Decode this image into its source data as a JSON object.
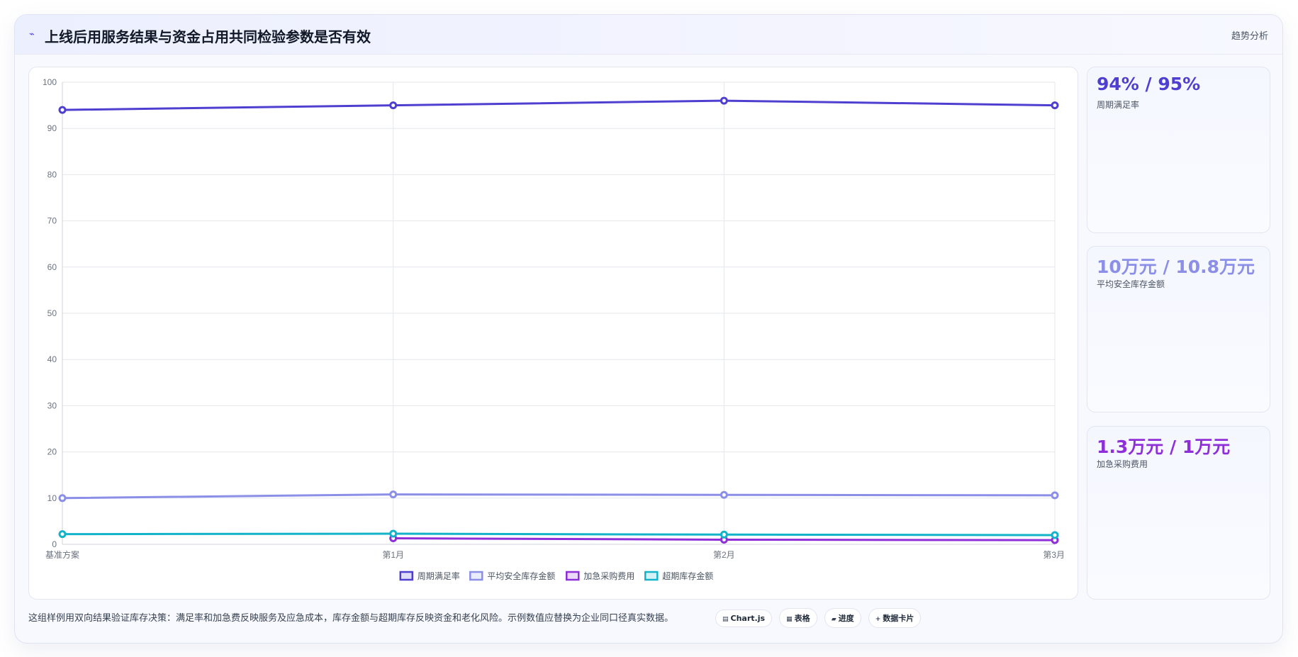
{
  "header": {
    "title": "上线后用服务结果与资金占用共同检验参数是否有效",
    "tag": "趋势分析"
  },
  "stats": [
    {
      "value": "94% / 95%",
      "label": "周期满足率",
      "color": "#4f3fd0"
    },
    {
      "value": "10万元 / 10.8万元",
      "label": "平均安全库存金额",
      "color": "#8b8fe8"
    },
    {
      "value": "1.3万元 / 1万元",
      "label": "加急采购费用",
      "color": "#8e2fd8"
    }
  ],
  "footer": {
    "note": "这组样例用双向结果验证库存决策：满足率和加急费反映服务及应急成本，库存金额与超期库存反映资金和老化风险。示例数值应替换为企业同口径真实数据。",
    "chips": [
      {
        "icon": "chart-icon",
        "label": "Chart.js"
      },
      {
        "icon": "table-icon",
        "label": "表格"
      },
      {
        "icon": "progress-icon",
        "label": "进度"
      },
      {
        "icon": "card-icon",
        "label": "数据卡片"
      }
    ]
  },
  "chart_data": {
    "type": "line",
    "categories": [
      "基准方案",
      "第1月",
      "第2月",
      "第3月"
    ],
    "ylim": [
      0,
      100
    ],
    "yticks": [
      0,
      10,
      20,
      30,
      40,
      50,
      60,
      70,
      80,
      90,
      100
    ],
    "grid": true,
    "legend_position": "bottom",
    "series": [
      {
        "name": "周期满足率",
        "color": "#4f3fd0",
        "values": [
          94,
          95,
          96,
          95
        ]
      },
      {
        "name": "平均安全库存金额",
        "color": "#8b8fe8",
        "values": [
          10,
          10.8,
          10.7,
          10.6
        ]
      },
      {
        "name": "加急采购费用",
        "color": "#8e2fd8",
        "values": [
          null,
          1.3,
          1,
          0.9
        ]
      },
      {
        "name": "超期库存金额",
        "color": "#13b3c9",
        "values": [
          2.2,
          2.3,
          2.1,
          2
        ]
      }
    ]
  }
}
